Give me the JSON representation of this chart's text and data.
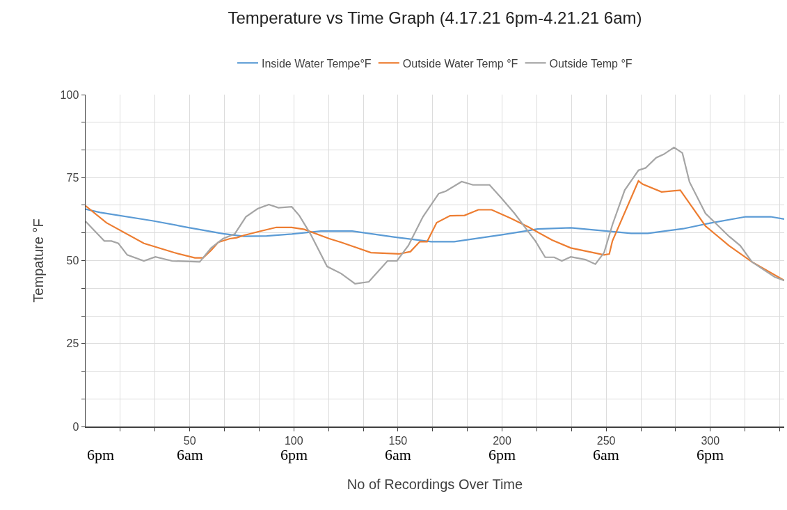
{
  "chart_data": {
    "type": "line",
    "title": "Temperature vs Time Graph (4.17.21 6pm-4.21.21 6am)",
    "xlabel": "No of Recordings Over Time",
    "ylabel": "Tempature °F",
    "legend": "top",
    "grid": true,
    "line_style": "solid",
    "marker": "none",
    "xlim": [
      0,
      335.5
    ],
    "ylim": [
      0,
      100
    ],
    "xticks": [
      {
        "value": 16.67,
        "label": null
      },
      {
        "value": 33.33,
        "label": null
      },
      50,
      {
        "value": 66.67,
        "label": null
      },
      {
        "value": 83.33,
        "label": null
      },
      100,
      {
        "value": 116.67,
        "label": null
      },
      {
        "value": 133.33,
        "label": null
      },
      150,
      {
        "value": 166.67,
        "label": null
      },
      {
        "value": 183.33,
        "label": null
      },
      200,
      {
        "value": 216.67,
        "label": null
      },
      {
        "value": 233.33,
        "label": null
      },
      250,
      {
        "value": 266.67,
        "label": null
      },
      {
        "value": 283.33,
        "label": null
      },
      300,
      {
        "value": 316.67,
        "label": null
      },
      {
        "value": 333.33,
        "label": null
      }
    ],
    "yticks": [
      0,
      {
        "value": 8.33,
        "label": null
      },
      {
        "value": 16.67,
        "label": null
      },
      25,
      {
        "value": 33.33,
        "label": null
      },
      {
        "value": 41.67,
        "label": null
      },
      50,
      {
        "value": 58.33,
        "label": null
      },
      {
        "value": 66.67,
        "label": null
      },
      75,
      {
        "value": 83.33,
        "label": null
      },
      {
        "value": 91.67,
        "label": null
      },
      100
    ],
    "annotations": [
      "6pm",
      "6am",
      "6pm",
      "6am",
      "6pm",
      "6am",
      "6pm"
    ],
    "series": [
      {
        "name": "Inside Water Tempe°F",
        "color": "#5b9bd5",
        "x": [
          0,
          7,
          32,
          49,
          66,
          76,
          87,
          99,
          113,
          128,
          148,
          166,
          177,
          200,
          217,
          233,
          262,
          270,
          287,
          300,
          317,
          329,
          335.5
        ],
        "values": [
          65.5,
          64.5,
          62.0,
          60.0,
          58.1,
          57.3,
          57.4,
          58.0,
          58.9,
          58.9,
          57.1,
          55.7,
          55.7,
          57.8,
          59.5,
          59.9,
          58.2,
          58.2,
          59.6,
          61.3,
          63.2,
          63.2,
          62.5
        ]
      },
      {
        "name": "Outside Water Temp °F",
        "color": "#ed7d31",
        "x": [
          0,
          10,
          28,
          42.5,
          52.5,
          56.4,
          60.3,
          63.7,
          69.3,
          72.6,
          76,
          83.6,
          91.6,
          99,
          105,
          117,
          122.7,
          137,
          150.5,
          156,
          160.5,
          164,
          168.6,
          175,
          182,
          188.6,
          195,
          204,
          213,
          224,
          233,
          249,
          251.5,
          253,
          265.5,
          267.6,
          276.6,
          285.6,
          297.7,
          309,
          320,
          335.5
        ],
        "values": [
          66.5,
          61.4,
          55.2,
          52.4,
          50.8,
          50.8,
          53.1,
          55.5,
          56.6,
          56.9,
          57.6,
          58.8,
          60.0,
          60.0,
          59.4,
          56.6,
          55.5,
          52.4,
          52.0,
          52.7,
          55.7,
          55.7,
          61.4,
          63.5,
          63.6,
          65.3,
          65.3,
          62.8,
          60.0,
          56.2,
          53.8,
          51.7,
          52.0,
          55.9,
          74.0,
          73.0,
          70.7,
          71.2,
          60.4,
          54.5,
          49.6,
          44.0
        ]
      },
      {
        "name": "Outside Temp °F",
        "color": "#a5a5a5",
        "x": [
          0,
          9,
          12.4,
          15.7,
          20,
          28,
          33.5,
          41.5,
          54.8,
          60.3,
          66,
          71.6,
          77,
          82.6,
          88,
          92.6,
          99,
          102.7,
          108,
          116,
          122.7,
          129.4,
          136,
          145,
          149.5,
          155,
          162,
          169.6,
          173,
          180.6,
          186,
          194,
          199.7,
          206,
          216,
          220.7,
          225,
          228.7,
          233,
          240,
          244.8,
          249,
          253,
          258.9,
          265.5,
          268.9,
          274,
          277.6,
          282.6,
          286.6,
          290,
          297.7,
          309,
          314.4,
          320,
          331,
          335.5
        ],
        "values": [
          61.8,
          55.9,
          55.9,
          55.2,
          51.7,
          49.9,
          51.1,
          49.9,
          49.6,
          53.8,
          56.6,
          58.0,
          63.2,
          65.6,
          66.9,
          65.9,
          66.2,
          63.5,
          58.0,
          48.2,
          46.1,
          43.0,
          43.6,
          49.9,
          49.9,
          54.5,
          63.2,
          70.2,
          70.9,
          73.8,
          72.8,
          72.8,
          68.8,
          64.2,
          55.9,
          51.0,
          51.0,
          49.9,
          51.1,
          50.3,
          48.9,
          52.4,
          60.8,
          71.2,
          77.2,
          77.9,
          81.0,
          82.0,
          84.1,
          82.4,
          73.7,
          64.2,
          57.3,
          54.5,
          49.6,
          45.0,
          44.0
        ]
      }
    ]
  }
}
